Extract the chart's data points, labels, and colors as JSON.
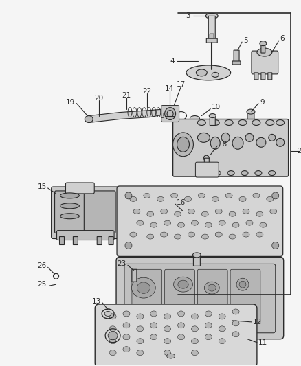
{
  "bg_color": "#f5f5f5",
  "line_color": "#2a2a2a",
  "label_fontsize": 7.5,
  "fig_width": 4.39,
  "fig_height": 5.33,
  "dpi": 100
}
